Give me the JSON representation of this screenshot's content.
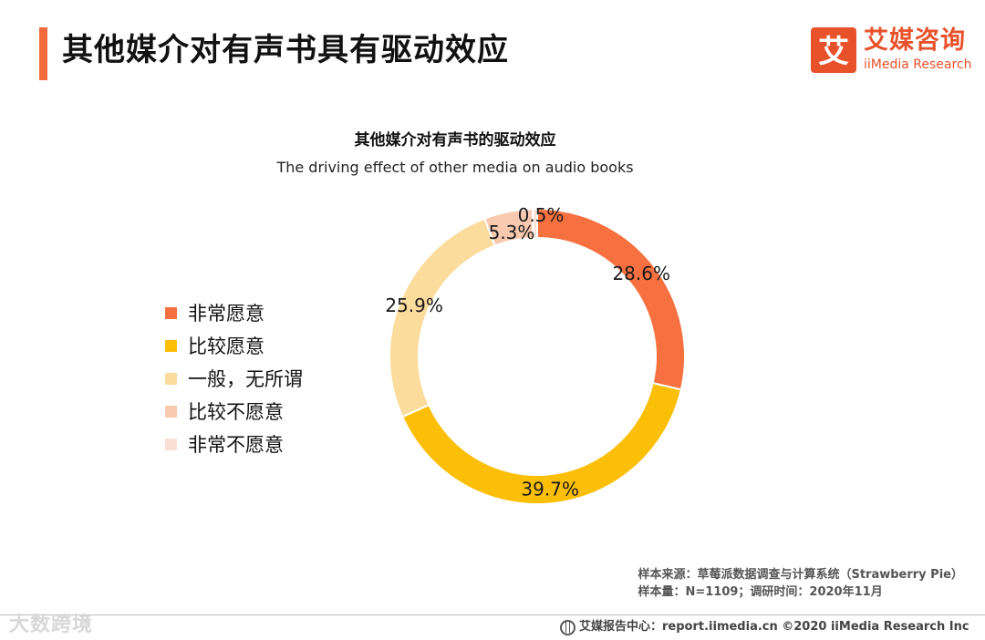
{
  "header": {
    "title": "其他媒介对有声书具有驱动效应",
    "accent_color": "#f26a3d"
  },
  "logo": {
    "icon": "iimedia-logo-icon",
    "glyph": "艾",
    "name_cn": "艾媒咨询",
    "name_en": "iiMedia Research",
    "color": "#e8522b"
  },
  "chart_data": {
    "type": "pie",
    "title": "其他媒介对有声书的驱动效应",
    "subtitle": "The driving effect of other media on audio books",
    "donut": true,
    "legend_position": "left",
    "categories": [
      "非常愿意",
      "比较愿意",
      "一般，无所谓",
      "比较不愿意",
      "非常不愿意"
    ],
    "values": [
      28.6,
      39.7,
      25.9,
      5.3,
      0.5
    ],
    "labels": [
      "28.6%",
      "39.7%",
      "25.9%",
      "5.3%",
      "0.5%"
    ],
    "colors": [
      "#f7703f",
      "#fcbf08",
      "#fcdc9c",
      "#f8c9ae",
      "#fbe1d5"
    ],
    "start_angle_deg": 0,
    "direction": "clockwise"
  },
  "source": {
    "line1": "样本来源：草莓派数据调查与计算系统（Strawberry Pie）",
    "line2": "样本量：N=1109；调研时间：2020年11月"
  },
  "footer": {
    "icon": "globe-icon",
    "text": "艾媒报告中心：report.iimedia.cn  ©2020 iiMedia Research Inc"
  },
  "watermark": {
    "text": "大数跨境"
  }
}
